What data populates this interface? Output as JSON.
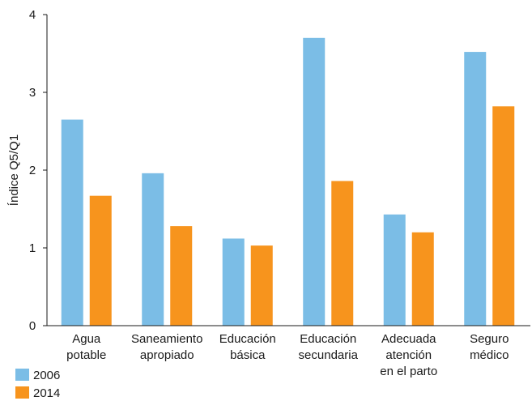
{
  "chart_data": {
    "type": "bar",
    "ylabel": "Índice Q5/Q1",
    "ylim": [
      0,
      4
    ],
    "yticks": [
      "0",
      "1",
      "2",
      "3",
      "4"
    ],
    "grid": false,
    "legend_position": "bottom-left",
    "categories": [
      [
        "Agua",
        "potable"
      ],
      [
        "Saneamiento",
        "apropiado"
      ],
      [
        "Educación",
        "básica"
      ],
      [
        "Educación",
        "secundaria"
      ],
      [
        "Adecuada",
        "atención",
        "en el parto"
      ],
      [
        "Seguro",
        "médico"
      ]
    ],
    "series": [
      {
        "name": "2006",
        "color": "#7bbde6",
        "values": [
          2.65,
          1.96,
          1.12,
          3.7,
          1.43,
          3.52
        ]
      },
      {
        "name": "2014",
        "color": "#f7941d",
        "values": [
          1.67,
          1.28,
          1.03,
          1.86,
          1.2,
          2.82
        ]
      }
    ]
  }
}
